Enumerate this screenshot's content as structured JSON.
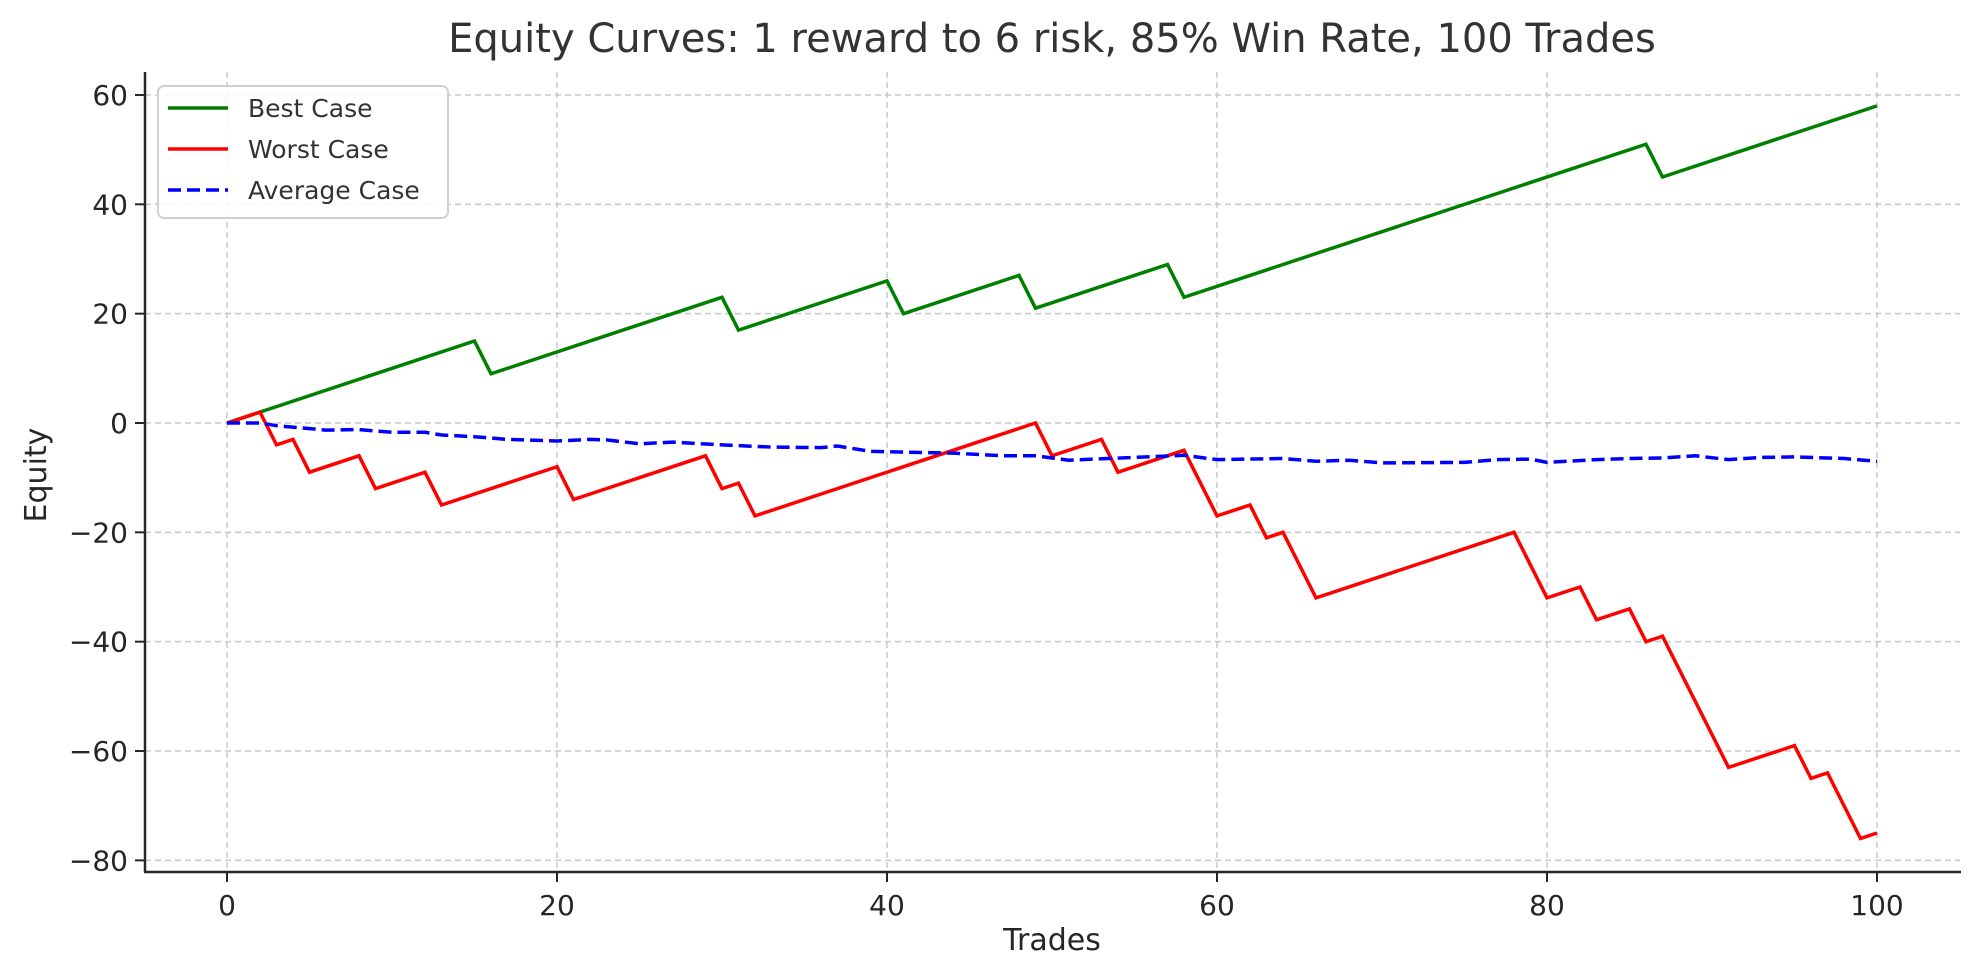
{
  "chart_data": {
    "type": "line",
    "title": "Equity Curves: 1 reward to 6 risk, 85% Win Rate, 100 Trades",
    "xlabel": "Trades",
    "ylabel": "Equity",
    "xlim": [
      -5,
      105
    ],
    "ylim": [
      -83,
      65
    ],
    "xticks": [
      0,
      20,
      40,
      60,
      80,
      100
    ],
    "yticks": [
      60,
      40,
      20,
      0,
      -20,
      -40,
      -60,
      -80
    ],
    "xtick_labels": [
      "0",
      "20",
      "40",
      "60",
      "80",
      "100"
    ],
    "ytick_labels": [
      "60",
      "40",
      "20",
      "0",
      "−20",
      "−40",
      "−60",
      "−80"
    ],
    "grid": true,
    "legend_position": "upper left",
    "series": [
      {
        "name": "Best Case",
        "color": "#008000",
        "style": "solid",
        "points": [
          [
            0,
            0
          ],
          [
            15,
            15
          ],
          [
            16,
            9
          ],
          [
            30,
            23
          ],
          [
            31,
            17
          ],
          [
            40,
            26
          ],
          [
            41,
            20
          ],
          [
            48,
            27
          ],
          [
            49,
            21
          ],
          [
            57,
            29
          ],
          [
            58,
            23
          ],
          [
            86,
            51
          ],
          [
            87,
            45
          ],
          [
            100,
            58
          ]
        ]
      },
      {
        "name": "Worst Case",
        "color": "#ff0000",
        "style": "solid",
        "points": [
          [
            0,
            0
          ],
          [
            2,
            2
          ],
          [
            3,
            -4
          ],
          [
            4,
            -3
          ],
          [
            5,
            -9
          ],
          [
            8,
            -6
          ],
          [
            9,
            -12
          ],
          [
            12,
            -9
          ],
          [
            13,
            -15
          ],
          [
            20,
            -8
          ],
          [
            21,
            -14
          ],
          [
            29,
            -6
          ],
          [
            30,
            -12
          ],
          [
            31,
            -11
          ],
          [
            32,
            -17
          ],
          [
            49,
            0
          ],
          [
            50,
            -6
          ],
          [
            53,
            -3
          ],
          [
            54,
            -9
          ],
          [
            58,
            -5
          ],
          [
            60,
            -17
          ],
          [
            62,
            -15
          ],
          [
            63,
            -21
          ],
          [
            64,
            -20
          ],
          [
            66,
            -32
          ],
          [
            78,
            -20
          ],
          [
            80,
            -32
          ],
          [
            82,
            -30
          ],
          [
            83,
            -36
          ],
          [
            85,
            -34
          ],
          [
            86,
            -40
          ],
          [
            87,
            -39
          ],
          [
            91,
            -63
          ],
          [
            95,
            -59
          ],
          [
            96,
            -65
          ],
          [
            97,
            -64
          ],
          [
            99,
            -76
          ],
          [
            100,
            -75
          ]
        ]
      },
      {
        "name": "Average Case",
        "color": "#0000ff",
        "style": "dashed",
        "points": [
          [
            0,
            0
          ],
          [
            2,
            0
          ],
          [
            3,
            -0.5
          ],
          [
            6,
            -1.3
          ],
          [
            8,
            -1.2
          ],
          [
            10,
            -1.7
          ],
          [
            12,
            -1.7
          ],
          [
            13,
            -2.2
          ],
          [
            15,
            -2.5
          ],
          [
            17,
            -3
          ],
          [
            20,
            -3.3
          ],
          [
            22,
            -3
          ],
          [
            23,
            -3.1
          ],
          [
            25,
            -3.8
          ],
          [
            27,
            -3.5
          ],
          [
            30,
            -4
          ],
          [
            33,
            -4.4
          ],
          [
            36,
            -4.5
          ],
          [
            37,
            -4.2
          ],
          [
            39,
            -5.2
          ],
          [
            44,
            -5.5
          ],
          [
            47,
            -6
          ],
          [
            49,
            -6
          ],
          [
            51,
            -6.8
          ],
          [
            55,
            -6.3
          ],
          [
            58,
            -5.9
          ],
          [
            60,
            -6.7
          ],
          [
            64,
            -6.5
          ],
          [
            66,
            -7
          ],
          [
            68,
            -6.8
          ],
          [
            70,
            -7.3
          ],
          [
            75,
            -7.2
          ],
          [
            77,
            -6.7
          ],
          [
            79,
            -6.6
          ],
          [
            80,
            -7.2
          ],
          [
            83,
            -6.7
          ],
          [
            85,
            -6.5
          ],
          [
            87,
            -6.4
          ],
          [
            89,
            -6
          ],
          [
            91,
            -6.7
          ],
          [
            93,
            -6.3
          ],
          [
            95,
            -6.2
          ],
          [
            98,
            -6.5
          ],
          [
            100,
            -7
          ]
        ]
      }
    ]
  },
  "legend": {
    "items": [
      {
        "label": "Best Case",
        "color": "#008000",
        "style": "solid"
      },
      {
        "label": "Worst Case",
        "color": "#ff0000",
        "style": "solid"
      },
      {
        "label": "Average Case",
        "color": "#0000ff",
        "style": "dashed"
      }
    ]
  }
}
